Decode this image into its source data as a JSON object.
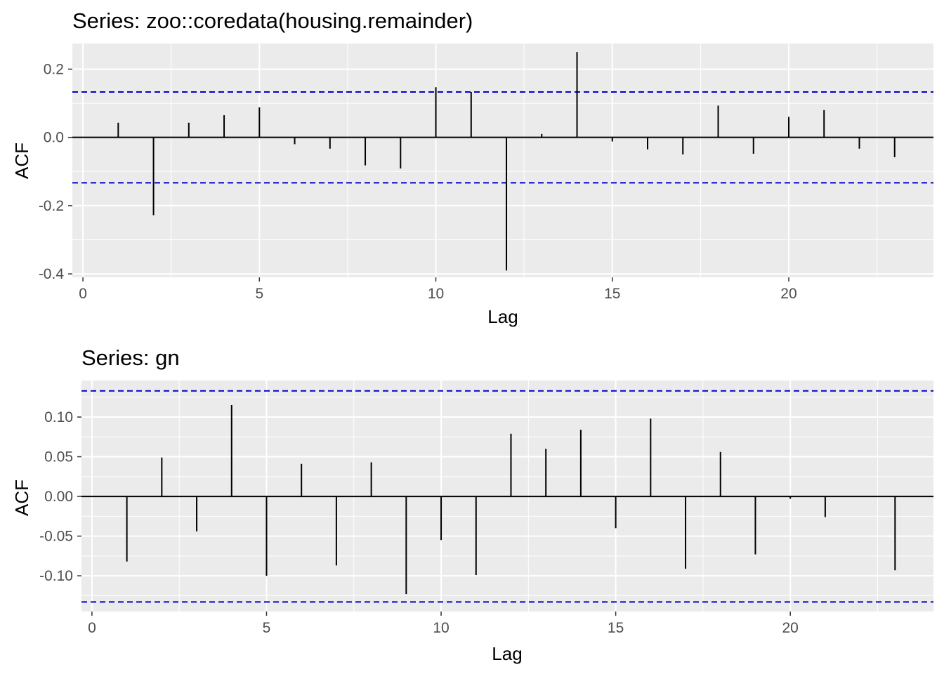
{
  "chart_data": [
    {
      "type": "bar",
      "title": "Series: zoo::coredata(housing.remainder)",
      "xlabel": "Lag",
      "ylabel": "ACF",
      "xlim": [
        -0.3,
        24.1
      ],
      "ylim": [
        -0.41,
        0.275
      ],
      "x_ticks": [
        0,
        5,
        10,
        15,
        20
      ],
      "x_tick_labels": [
        "0",
        "5",
        "10",
        "15",
        "20"
      ],
      "y_ticks": [
        0.2,
        0.0,
        -0.2,
        -0.4
      ],
      "y_tick_labels": [
        "0.2",
        "0.0",
        "-0.2",
        "-0.4"
      ],
      "y_minor_ticks": [
        0.1,
        -0.1,
        -0.3
      ],
      "x_minor_ticks": [
        2.5,
        7.5,
        12.5,
        17.5,
        22.5
      ],
      "grid": true,
      "ci": [
        0.133,
        -0.133
      ],
      "lags": [
        1,
        2,
        3,
        4,
        5,
        6,
        7,
        8,
        9,
        10,
        11,
        12,
        13,
        14,
        15,
        16,
        17,
        18,
        19,
        20,
        21,
        22,
        23
      ],
      "values": [
        0.043,
        -0.228,
        0.043,
        0.065,
        0.088,
        -0.02,
        -0.033,
        -0.082,
        -0.091,
        0.147,
        0.133,
        -0.39,
        0.01,
        0.25,
        -0.012,
        -0.035,
        -0.05,
        0.093,
        -0.048,
        0.06,
        0.08,
        -0.033,
        -0.058
      ],
      "colors": {
        "panel": "#ebebeb",
        "grid": "#ffffff",
        "bar": "#000000",
        "ci": "#0000cc"
      }
    },
    {
      "type": "bar",
      "title": "Series: gn",
      "xlabel": "Lag",
      "ylabel": "ACF",
      "xlim": [
        -0.3,
        24.1
      ],
      "ylim": [
        -0.145,
        0.146
      ],
      "x_ticks": [
        0,
        5,
        10,
        15,
        20
      ],
      "x_tick_labels": [
        "0",
        "5",
        "10",
        "15",
        "20"
      ],
      "y_ticks": [
        0.1,
        0.05,
        0.0,
        -0.05,
        -0.1
      ],
      "y_tick_labels": [
        "0.10",
        "0.05",
        "0.00",
        "-0.05",
        "-0.10"
      ],
      "y_minor_ticks": [
        0.125,
        0.075,
        0.025,
        -0.025,
        -0.075,
        -0.125
      ],
      "x_minor_ticks": [
        2.5,
        7.5,
        12.5,
        17.5,
        22.5
      ],
      "grid": true,
      "ci": [
        0.133,
        -0.133
      ],
      "lags": [
        1,
        2,
        3,
        4,
        5,
        6,
        7,
        8,
        9,
        10,
        11,
        12,
        13,
        14,
        15,
        16,
        17,
        18,
        19,
        20,
        21,
        22,
        23
      ],
      "values": [
        -0.082,
        0.049,
        -0.044,
        0.115,
        -0.1,
        0.041,
        -0.087,
        0.043,
        -0.123,
        -0.055,
        -0.099,
        0.079,
        0.06,
        0.084,
        -0.04,
        0.098,
        -0.091,
        0.056,
        -0.073,
        -0.003,
        -0.026,
        0.0,
        -0.093
      ],
      "colors": {
        "panel": "#ebebeb",
        "grid": "#ffffff",
        "bar": "#000000",
        "ci": "#0000cc"
      }
    }
  ]
}
